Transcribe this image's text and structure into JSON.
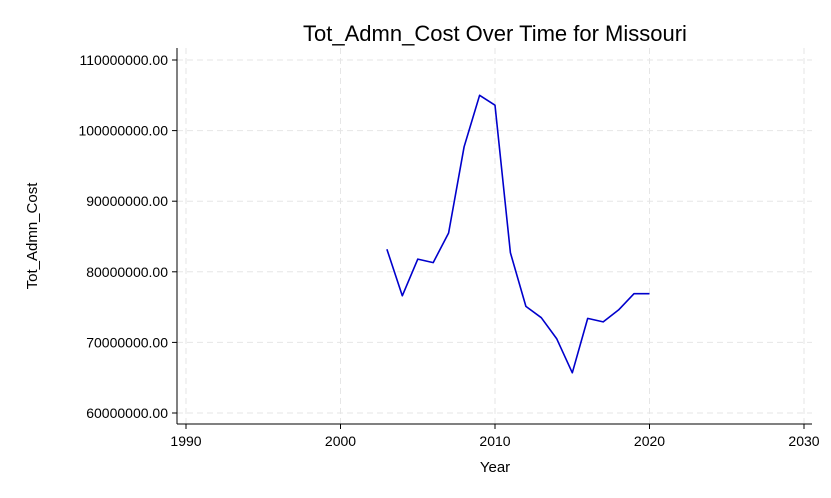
{
  "chart_data": {
    "type": "line",
    "title": "Tot_Admn_Cost Over Time for Missouri",
    "xlabel": "Year",
    "ylabel": "Tot_Admn_Cost",
    "xlim": [
      1990,
      2030
    ],
    "ylim": [
      60000000,
      110000000
    ],
    "xticks": [
      1990,
      2000,
      2010,
      2020,
      2030
    ],
    "xtick_labels": [
      "1990",
      "2000",
      "2010",
      "2020",
      "2030"
    ],
    "yticks": [
      60000000,
      70000000,
      80000000,
      90000000,
      100000000,
      110000000
    ],
    "ytick_labels": [
      "60000000.00",
      "70000000.00",
      "80000000.00",
      "90000000.00",
      "100000000.00",
      "110000000.00"
    ],
    "grid": true,
    "series": [
      {
        "color": "#0000cc",
        "x": [
          2003,
          2004,
          2005,
          2006,
          2007,
          2008,
          2009,
          2010,
          2011,
          2012,
          2013,
          2014,
          2015,
          2016,
          2017,
          2018,
          2019,
          2020
        ],
        "y": [
          83200000,
          76600000,
          81800000,
          81300000,
          85500000,
          97700000,
          105000000,
          103600000,
          82700000,
          75100000,
          73500000,
          70500000,
          65700000,
          73400000,
          72900000,
          74600000,
          76900000,
          76900000
        ]
      }
    ]
  }
}
